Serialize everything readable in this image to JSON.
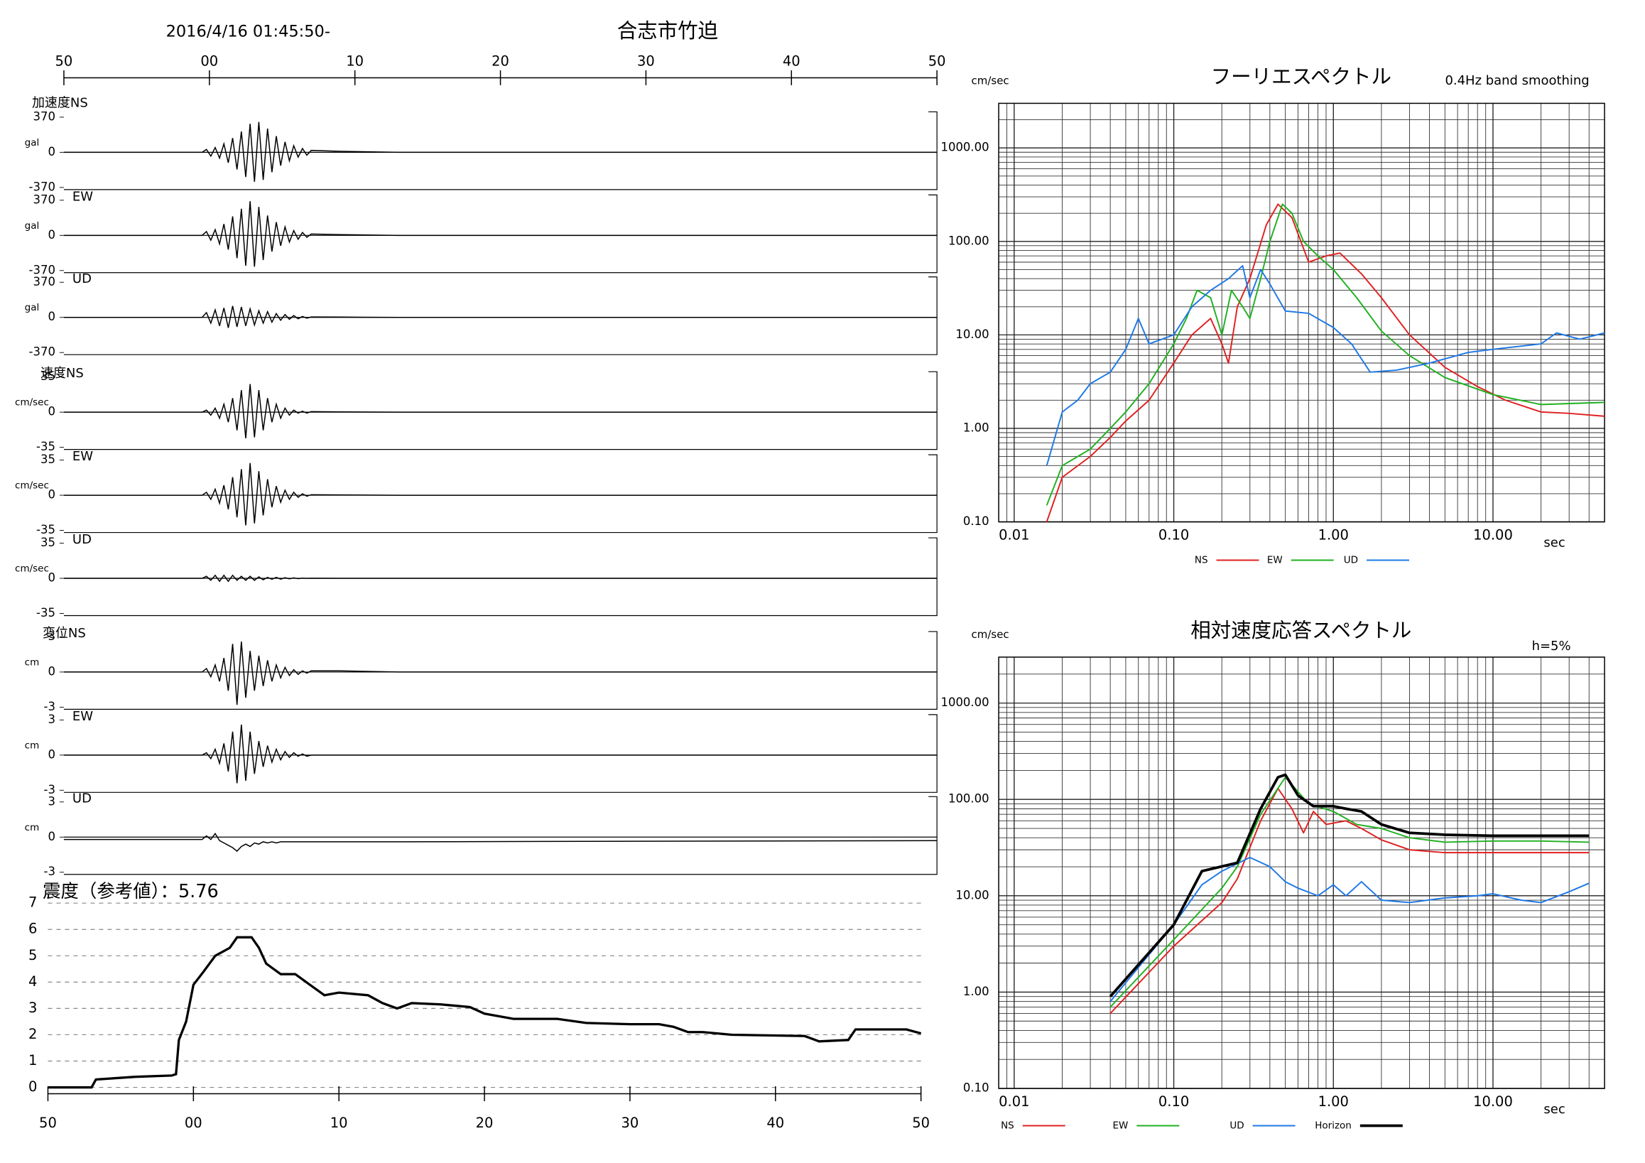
{
  "chart_data": [
    {
      "type": "waveform",
      "title": "合志市竹迫",
      "subtitle": "2016/4/16 01:45:50-",
      "xlim": [
        0,
        60
      ],
      "xticks": [
        {
          "value": 0,
          "label": "50"
        },
        {
          "value": 10,
          "label": "00"
        },
        {
          "value": 20,
          "label": "10"
        },
        {
          "value": 30,
          "label": "20"
        },
        {
          "value": 40,
          "label": "30"
        },
        {
          "value": 50,
          "label": "40"
        },
        {
          "value": 60,
          "label": "50"
        }
      ],
      "x": [
        0,
        9.5,
        9.8,
        10.1,
        10.4,
        10.7,
        11.0,
        11.3,
        11.6,
        11.9,
        12.2,
        12.5,
        12.8,
        13.1,
        13.4,
        13.7,
        14.0,
        14.3,
        14.6,
        14.9,
        15.2,
        15.5,
        15.8,
        16.1,
        16.4,
        16.7,
        17.0,
        19,
        23,
        60
      ],
      "panels": [
        {
          "label": "加速度NS",
          "unit": "gal",
          "ylim": [
            -370,
            370
          ],
          "yticks": [
            -370,
            0,
            370
          ],
          "values": [
            0,
            0,
            30,
            -40,
            50,
            -60,
            90,
            -110,
            150,
            -180,
            220,
            -260,
            300,
            -310,
            320,
            -290,
            250,
            -210,
            170,
            -140,
            110,
            -90,
            70,
            -50,
            40,
            -30,
            20,
            10,
            0,
            0
          ]
        },
        {
          "label": "EW",
          "unit": "gal",
          "ylim": [
            -370,
            370
          ],
          "yticks": [
            -370,
            0,
            370
          ],
          "values": [
            0,
            0,
            40,
            -50,
            60,
            -90,
            120,
            -150,
            200,
            -240,
            280,
            -320,
            360,
            -330,
            300,
            -260,
            210,
            -170,
            140,
            -110,
            90,
            -70,
            50,
            -40,
            30,
            -20,
            15,
            8,
            0,
            0
          ]
        },
        {
          "label": "UD",
          "unit": "gal",
          "ylim": [
            -370,
            370
          ],
          "yticks": [
            -370,
            0,
            370
          ],
          "values": [
            0,
            0,
            50,
            -60,
            80,
            -90,
            100,
            -110,
            120,
            -100,
            110,
            -90,
            90,
            -80,
            70,
            -60,
            60,
            -50,
            40,
            -30,
            30,
            -20,
            20,
            -15,
            10,
            -8,
            5,
            3,
            0,
            0
          ]
        },
        {
          "label": "速度NS",
          "unit": "cm/sec",
          "ylim": [
            -35,
            35
          ],
          "yticks": [
            -35,
            0,
            35
          ],
          "values": [
            0,
            0,
            2,
            -3,
            4,
            -6,
            8,
            -10,
            14,
            -18,
            22,
            -26,
            28,
            -25,
            22,
            -18,
            14,
            -10,
            8,
            -6,
            4,
            -3,
            2,
            -1,
            1,
            -1,
            0.5,
            0.3,
            0,
            0
          ]
        },
        {
          "label": "EW",
          "unit": "cm/sec",
          "ylim": [
            -35,
            35
          ],
          "yticks": [
            -35,
            0,
            35
          ],
          "values": [
            0,
            0,
            3,
            -4,
            6,
            -8,
            10,
            -14,
            18,
            -22,
            26,
            -30,
            32,
            -28,
            24,
            -20,
            16,
            -12,
            9,
            -7,
            5,
            -4,
            3,
            -2,
            1.5,
            -1,
            0.5,
            0.3,
            0,
            0
          ]
        },
        {
          "label": "UD",
          "unit": "cm/sec",
          "ylim": [
            -35,
            35
          ],
          "yticks": [
            -35,
            0,
            35
          ],
          "values": [
            0,
            0,
            2,
            -2,
            3,
            -3,
            3,
            -3,
            3,
            -2,
            2,
            -2,
            2,
            -2,
            1.5,
            -1.5,
            1,
            -1,
            1,
            -0.8,
            0.6,
            -0.5,
            0.4,
            -0.3,
            0.2,
            -0.1,
            0.1,
            0,
            0,
            0
          ]
        },
        {
          "label": "変位NS",
          "unit": "cm",
          "ylim": [
            -3,
            3
          ],
          "yticks": [
            -3,
            0,
            3
          ],
          "values": [
            0,
            0,
            0.3,
            -0.4,
            0.6,
            -0.8,
            1.2,
            -1.6,
            2.4,
            -2.8,
            2.6,
            -2.2,
            1.8,
            -1.6,
            1.4,
            -1.2,
            1,
            -0.8,
            0.6,
            -0.5,
            0.4,
            -0.3,
            0.2,
            -0.2,
            0.1,
            -0.1,
            0.1,
            0.1,
            0,
            0
          ]
        },
        {
          "label": "EW",
          "unit": "cm",
          "ylim": [
            -3,
            3
          ],
          "yticks": [
            -3,
            0,
            3
          ],
          "values": [
            0,
            0,
            0.2,
            -0.3,
            0.5,
            -0.7,
            1,
            -1.4,
            2,
            -2.4,
            2.6,
            -2.2,
            2,
            -1.6,
            1.2,
            -1,
            0.8,
            -0.6,
            0.5,
            -0.4,
            0.3,
            -0.2,
            0.2,
            -0.1,
            0.1,
            -0.1,
            0,
            0,
            0,
            0
          ]
        },
        {
          "label": "UD",
          "unit": "cm",
          "ylim": [
            -3,
            3
          ],
          "yticks": [
            -3,
            0,
            3
          ],
          "values": [
            -0.2,
            -0.2,
            0.1,
            -0.2,
            0.3,
            -0.3,
            -0.5,
            -0.7,
            -0.9,
            -1.2,
            -0.8,
            -0.6,
            -0.8,
            -0.5,
            -0.6,
            -0.4,
            -0.5,
            -0.4,
            -0.5,
            -0.4,
            -0.4,
            -0.4,
            -0.4,
            -0.4,
            -0.4,
            -0.4,
            -0.4,
            -0.4,
            -0.4,
            -0.3
          ]
        }
      ]
    },
    {
      "type": "line",
      "title": "震度（参考値）：5.76",
      "color": "#000000",
      "grid": true,
      "xlim": [
        0,
        60
      ],
      "xticks": [
        {
          "value": 0,
          "label": "50"
        },
        {
          "value": 10,
          "label": "00"
        },
        {
          "value": 20,
          "label": "10"
        },
        {
          "value": 30,
          "label": "20"
        },
        {
          "value": 40,
          "label": "30"
        },
        {
          "value": 50,
          "label": "40"
        },
        {
          "value": 60,
          "label": "50"
        }
      ],
      "ylim": [
        0,
        7
      ],
      "yticks": [
        0,
        1,
        2,
        3,
        4,
        5,
        6,
        7
      ],
      "x": [
        0,
        3,
        3.3,
        6,
        8.5,
        8.8,
        9,
        9.5,
        10,
        10.7,
        11.5,
        12.5,
        13,
        14,
        14.5,
        15,
        16,
        17,
        18,
        19,
        20,
        22,
        23,
        24,
        25,
        27,
        29,
        30,
        32,
        35,
        37,
        40,
        42,
        43,
        44,
        45,
        47,
        52,
        53,
        55,
        55.5,
        59,
        60
      ],
      "values": [
        0,
        0,
        0.3,
        0.4,
        0.45,
        0.5,
        1.8,
        2.5,
        3.9,
        4.4,
        5.0,
        5.3,
        5.7,
        5.7,
        5.3,
        4.7,
        4.3,
        4.3,
        3.9,
        3.5,
        3.6,
        3.5,
        3.2,
        3.0,
        3.2,
        3.15,
        3.05,
        2.8,
        2.6,
        2.6,
        2.45,
        2.4,
        2.4,
        2.3,
        2.1,
        2.1,
        2.0,
        1.95,
        1.75,
        1.8,
        2.2,
        2.2,
        2.05
      ]
    },
    {
      "type": "loglog",
      "title": "フーリエスペクトル",
      "subtitle": "0.4Hz band smoothing",
      "ylabel": "cm/sec",
      "xlabel": "sec",
      "log": true,
      "grid": true,
      "xlim": [
        0.008,
        50
      ],
      "xticks": [
        0.01,
        {
          "value": 0.1,
          "label": "0.10"
        },
        {
          "value": 1,
          "label": "1.00"
        },
        {
          "value": 10,
          "label": "10.00"
        }
      ],
      "ylim": [
        0.1,
        3000
      ],
      "yticks": [
        {
          "value": 0.1,
          "label": "0.10"
        },
        {
          "value": 1,
          "label": "1.00"
        },
        {
          "value": 10,
          "label": "10.00"
        },
        {
          "value": 100,
          "label": "100.00"
        },
        {
          "value": 1000,
          "label": "1000.00"
        }
      ],
      "series": [
        {
          "name": "NS",
          "color": "#e02020",
          "x": [
            0.016,
            0.02,
            0.03,
            0.04,
            0.05,
            0.07,
            0.1,
            0.13,
            0.17,
            0.2,
            0.22,
            0.25,
            0.3,
            0.38,
            0.45,
            0.55,
            0.7,
            0.9,
            1.1,
            1.5,
            2,
            3,
            5,
            8,
            12,
            20,
            30,
            50
          ],
          "values": [
            0.1,
            0.3,
            0.5,
            0.8,
            1.2,
            2,
            5,
            10,
            15,
            8,
            5,
            20,
            40,
            150,
            250,
            180,
            60,
            70,
            75,
            45,
            25,
            10,
            4.5,
            2.8,
            2,
            1.5,
            1.45,
            1.35
          ]
        },
        {
          "name": "EW",
          "color": "#20b020",
          "x": [
            0.016,
            0.02,
            0.03,
            0.04,
            0.05,
            0.07,
            0.1,
            0.12,
            0.14,
            0.17,
            0.2,
            0.23,
            0.27,
            0.3,
            0.35,
            0.4,
            0.48,
            0.55,
            0.65,
            0.8,
            1,
            1.4,
            2,
            3,
            5,
            10,
            20,
            50
          ],
          "values": [
            0.15,
            0.4,
            0.6,
            1,
            1.5,
            3,
            8,
            15,
            30,
            25,
            10,
            30,
            20,
            15,
            40,
            100,
            250,
            200,
            100,
            70,
            50,
            25,
            11,
            6,
            3.5,
            2.3,
            1.8,
            1.9
          ]
        },
        {
          "name": "UD",
          "color": "#1e78e6",
          "x": [
            0.016,
            0.02,
            0.025,
            0.03,
            0.04,
            0.05,
            0.06,
            0.07,
            0.1,
            0.13,
            0.17,
            0.22,
            0.27,
            0.3,
            0.35,
            0.4,
            0.5,
            0.7,
            1,
            1.3,
            1.7,
            2.5,
            4,
            7,
            10,
            20,
            25,
            35,
            50
          ],
          "values": [
            0.4,
            1.5,
            2,
            3,
            4,
            7,
            15,
            8,
            10,
            20,
            30,
            40,
            55,
            25,
            50,
            35,
            18,
            17,
            12,
            8,
            4,
            4.2,
            5,
            6.5,
            7,
            8,
            10.5,
            9,
            10.5
          ]
        }
      ]
    },
    {
      "type": "loglog",
      "title": "相対速度応答スペクトル",
      "subtitle": "h=5%",
      "ylabel": "cm/sec",
      "xlabel": "sec",
      "log": true,
      "grid": true,
      "xlim": [
        0.008,
        50
      ],
      "xticks": [
        0.01,
        {
          "value": 0.1,
          "label": "0.10"
        },
        {
          "value": 1,
          "label": "1.00"
        },
        {
          "value": 10,
          "label": "10.00"
        }
      ],
      "ylim": [
        0.1,
        3000
      ],
      "yticks": [
        {
          "value": 0.1,
          "label": "0.10"
        },
        {
          "value": 1,
          "label": "1.00"
        },
        {
          "value": 10,
          "label": "10.00"
        },
        {
          "value": 100,
          "label": "100.00"
        },
        {
          "value": 1000,
          "label": "1000.00"
        }
      ],
      "series": [
        {
          "name": "NS",
          "color": "#e02020",
          "x": [
            0.04,
            0.1,
            0.2,
            0.25,
            0.35,
            0.45,
            0.55,
            0.65,
            0.75,
            0.9,
            1.2,
            1.5,
            2,
            3,
            5,
            10,
            20,
            40
          ],
          "values": [
            0.6,
            3,
            8.5,
            15,
            60,
            130,
            80,
            45,
            75,
            55,
            60,
            50,
            38,
            30,
            28,
            28,
            28,
            28
          ]
        },
        {
          "name": "EW",
          "color": "#20b020",
          "x": [
            0.04,
            0.1,
            0.2,
            0.25,
            0.35,
            0.5,
            0.7,
            1,
            1.4,
            2,
            3,
            5,
            10,
            20,
            40
          ],
          "values": [
            0.7,
            3.5,
            12,
            20,
            70,
            170,
            90,
            75,
            55,
            50,
            40,
            36,
            37,
            37,
            36
          ]
        },
        {
          "name": "UD",
          "color": "#1e78e6",
          "x": [
            0.04,
            0.1,
            0.15,
            0.2,
            0.3,
            0.4,
            0.5,
            0.6,
            0.8,
            1,
            1.2,
            1.5,
            2,
            3,
            5,
            8,
            10,
            15,
            20,
            30,
            40
          ],
          "values": [
            0.8,
            5,
            13,
            18,
            25,
            20,
            14,
            12,
            10,
            13,
            10,
            14,
            9,
            8.5,
            9.5,
            10,
            10.5,
            9,
            8.5,
            11,
            13.5
          ]
        },
        {
          "name": "Horizon",
          "color": "#000000",
          "x": [
            0.04,
            0.1,
            0.15,
            0.25,
            0.35,
            0.45,
            0.5,
            0.6,
            0.75,
            1,
            1.2,
            1.5,
            2,
            3,
            5,
            10,
            20,
            40
          ],
          "values": [
            0.9,
            5,
            18,
            22,
            80,
            170,
            180,
            110,
            85,
            85,
            80,
            75,
            55,
            45,
            43,
            42,
            42,
            42
          ]
        }
      ]
    }
  ]
}
